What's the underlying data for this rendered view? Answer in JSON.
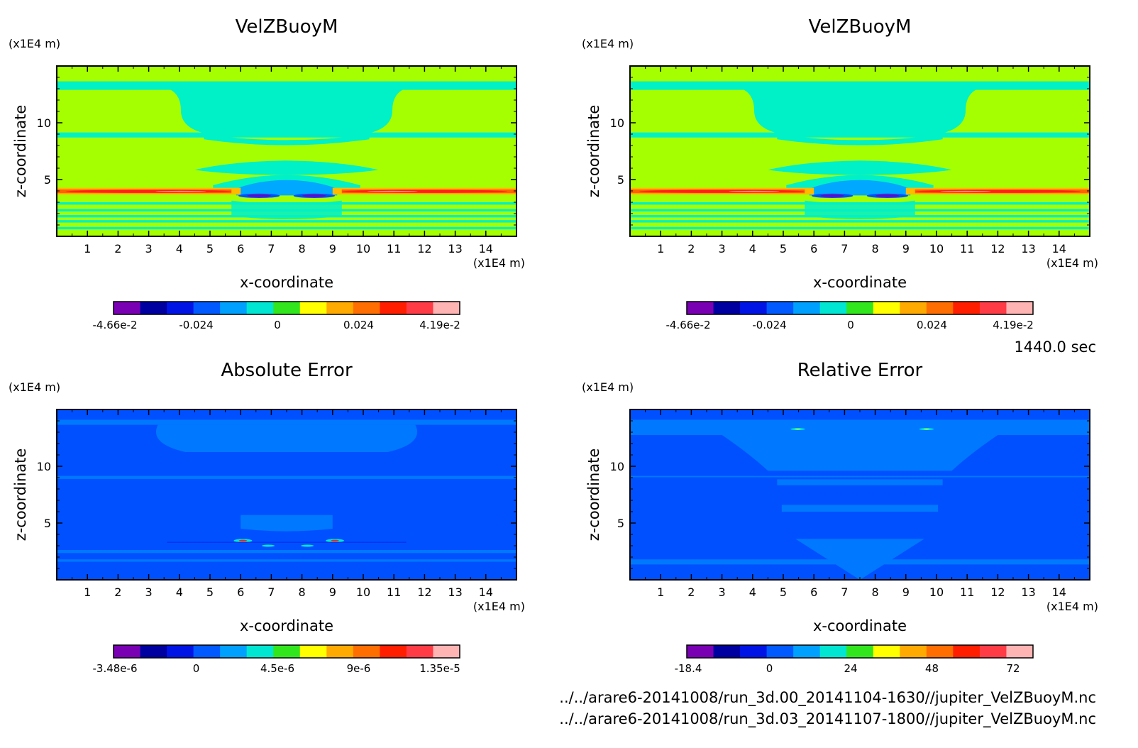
{
  "time_label": "1440.0 sec",
  "files": [
    "../../arare6-20141008/run_3d.00_20141104-1630//jupiter_VelZBuoyM.nc",
    "../../arare6-20141008/run_3d.03_20141107-1800//jupiter_VelZBuoyM.nc"
  ],
  "colors": {
    "background": "#ffffff",
    "frame": "#000000",
    "palette": [
      "#7a00b4",
      "#0000a0",
      "#0014e6",
      "#005aff",
      "#00a0ff",
      "#00e6d2",
      "#32e61e",
      "#ffff00",
      "#ffaa00",
      "#ff6e00",
      "#ff1e00",
      "#ff3c46",
      "#ffb4b4"
    ],
    "velocity_field": {
      "background": "#a6ff00",
      "upper": "#00f0c8",
      "cool": "#00a8ff",
      "deep": "#0050ff",
      "warm": "#ffbb00",
      "hot": "#ff6000",
      "hotter": "#ff2020",
      "core": "#ff9999",
      "trough": "#7a00b4"
    },
    "abs_error_field": {
      "background": "#0050ff",
      "light": "#0078ff",
      "cyan": "#00e6d2",
      "yellow": "#ffff00",
      "red": "#ff2020",
      "dark": "#0014e6"
    },
    "rel_error_field": {
      "background": "#0050ff",
      "light": "#0078ff",
      "cyan": "#00e6d2",
      "yellow": "#ffff00"
    }
  },
  "chart_data": [
    {
      "type": "heatmap",
      "title": "VelZBuoyM",
      "xlabel": "x-coordinate",
      "ylabel": "z-coordinate",
      "x_unit": "(x1E4 m)",
      "y_unit": "(x1E4 m)",
      "xlim": [
        0,
        15
      ],
      "ylim": [
        0,
        15
      ],
      "x_ticks": [
        1,
        2,
        3,
        4,
        5,
        6,
        7,
        8,
        9,
        10,
        11,
        12,
        13,
        14
      ],
      "y_ticks": [
        5,
        10
      ],
      "colorbar": {
        "range": [
          -0.0466,
          0.0419
        ],
        "tick_labels": [
          "-4.66e-2",
          "-0.024",
          "0",
          "0.024",
          "4.19e-2"
        ],
        "levels": 12
      },
      "field": "velocity"
    },
    {
      "type": "heatmap",
      "title": "VelZBuoyM",
      "xlabel": "x-coordinate",
      "ylabel": "z-coordinate",
      "x_unit": "(x1E4 m)",
      "y_unit": "(x1E4 m)",
      "xlim": [
        0,
        15
      ],
      "ylim": [
        0,
        15
      ],
      "x_ticks": [
        1,
        2,
        3,
        4,
        5,
        6,
        7,
        8,
        9,
        10,
        11,
        12,
        13,
        14
      ],
      "y_ticks": [
        5,
        10
      ],
      "colorbar": {
        "range": [
          -0.0466,
          0.0419
        ],
        "tick_labels": [
          "-4.66e-2",
          "-0.024",
          "0",
          "0.024",
          "4.19e-2"
        ],
        "levels": 12
      },
      "field": "velocity"
    },
    {
      "type": "heatmap",
      "title": "Absolute Error",
      "xlabel": "x-coordinate",
      "ylabel": "z-coordinate",
      "x_unit": "(x1E4 m)",
      "y_unit": "(x1E4 m)",
      "xlim": [
        0,
        15
      ],
      "ylim": [
        0,
        15
      ],
      "x_ticks": [
        1,
        2,
        3,
        4,
        5,
        6,
        7,
        8,
        9,
        10,
        11,
        12,
        13,
        14
      ],
      "y_ticks": [
        5,
        10
      ],
      "colorbar": {
        "range": [
          -3.48e-06,
          1.35e-05
        ],
        "tick_labels": [
          "-3.48e-6",
          "0",
          "4.5e-6",
          "9e-6",
          "1.35e-5"
        ],
        "levels": 12
      },
      "field": "abs_error"
    },
    {
      "type": "heatmap",
      "title": "Relative Error",
      "xlabel": "x-coordinate",
      "ylabel": "z-coordinate",
      "x_unit": "(x1E4 m)",
      "y_unit": "(x1E4 m)",
      "xlim": [
        0,
        15
      ],
      "ylim": [
        0,
        15
      ],
      "x_ticks": [
        1,
        2,
        3,
        4,
        5,
        6,
        7,
        8,
        9,
        10,
        11,
        12,
        13,
        14
      ],
      "y_ticks": [
        5,
        10
      ],
      "colorbar": {
        "range": [
          -18.4,
          72
        ],
        "tick_labels": [
          "-18.4",
          "0",
          "24",
          "48",
          "72"
        ],
        "levels": 12
      },
      "field": "rel_error"
    }
  ]
}
